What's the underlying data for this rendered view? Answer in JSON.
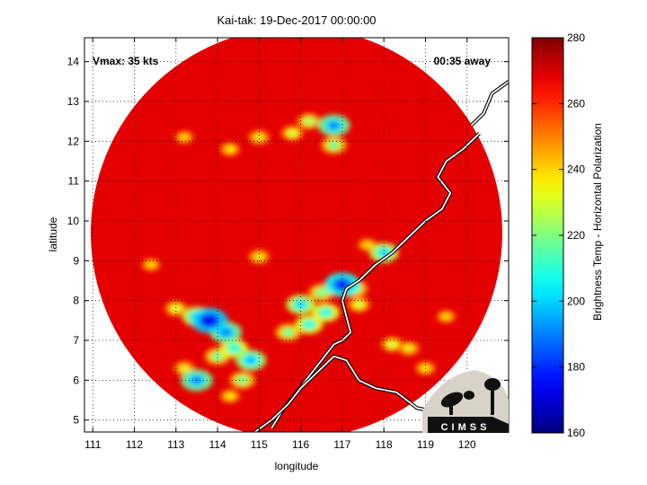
{
  "chart_data": {
    "type": "heatmap",
    "title": "Kai-tak: 19-Dec-2017 00:00:00",
    "xlabel": "longitude",
    "ylabel": "latitude",
    "xlim": [
      110.8,
      121.0
    ],
    "ylim": [
      4.7,
      14.6
    ],
    "xticks": [
      111,
      112,
      113,
      114,
      115,
      116,
      117,
      118,
      119,
      120
    ],
    "yticks": [
      5,
      6,
      7,
      8,
      9,
      10,
      11,
      12,
      13,
      14
    ],
    "grid": true,
    "annotations": {
      "left": "Vmax: 35 kts",
      "right": "00:35 away"
    },
    "swath": {
      "center": [
        115.9,
        9.7
      ],
      "radius_deg": 4.95,
      "background_value": 268
    },
    "colorbar": {
      "label": "Brightness Temp - Horizontal Polarization",
      "min": 160,
      "max": 280,
      "ticks": [
        160,
        180,
        200,
        220,
        240,
        260,
        280
      ],
      "colormap": "jet"
    },
    "features": [
      {
        "lon": 113.8,
        "lat": 7.5,
        "value": 172
      },
      {
        "lon": 113.5,
        "lat": 7.6,
        "value": 200
      },
      {
        "lon": 113.0,
        "lat": 7.8,
        "value": 225
      },
      {
        "lon": 114.2,
        "lat": 7.2,
        "value": 190
      },
      {
        "lon": 114.4,
        "lat": 6.8,
        "value": 205
      },
      {
        "lon": 114.0,
        "lat": 6.6,
        "value": 215
      },
      {
        "lon": 114.8,
        "lat": 6.5,
        "value": 195
      },
      {
        "lon": 114.6,
        "lat": 6.0,
        "value": 215
      },
      {
        "lon": 113.5,
        "lat": 6.0,
        "value": 190
      },
      {
        "lon": 113.2,
        "lat": 6.3,
        "value": 230
      },
      {
        "lon": 114.3,
        "lat": 5.6,
        "value": 235
      },
      {
        "lon": 116.2,
        "lat": 7.4,
        "value": 205
      },
      {
        "lon": 116.6,
        "lat": 7.7,
        "value": 205
      },
      {
        "lon": 116.0,
        "lat": 7.9,
        "value": 200
      },
      {
        "lon": 116.5,
        "lat": 8.2,
        "value": 215
      },
      {
        "lon": 115.7,
        "lat": 7.2,
        "value": 215
      },
      {
        "lon": 117.0,
        "lat": 8.4,
        "value": 178
      },
      {
        "lon": 117.3,
        "lat": 8.3,
        "value": 215
      },
      {
        "lon": 117.4,
        "lat": 7.9,
        "value": 225
      },
      {
        "lon": 118.0,
        "lat": 9.2,
        "value": 200
      },
      {
        "lon": 117.6,
        "lat": 9.4,
        "value": 240
      },
      {
        "lon": 118.2,
        "lat": 6.9,
        "value": 225
      },
      {
        "lon": 118.6,
        "lat": 6.8,
        "value": 230
      },
      {
        "lon": 119.0,
        "lat": 6.3,
        "value": 235
      },
      {
        "lon": 116.8,
        "lat": 12.4,
        "value": 190
      },
      {
        "lon": 116.8,
        "lat": 11.9,
        "value": 215
      },
      {
        "lon": 116.2,
        "lat": 12.5,
        "value": 220
      },
      {
        "lon": 115.8,
        "lat": 12.2,
        "value": 225
      },
      {
        "lon": 115.0,
        "lat": 12.1,
        "value": 230
      },
      {
        "lon": 114.3,
        "lat": 11.8,
        "value": 235
      },
      {
        "lon": 113.2,
        "lat": 12.1,
        "value": 240
      },
      {
        "lon": 115.0,
        "lat": 9.1,
        "value": 230
      },
      {
        "lon": 112.4,
        "lat": 8.9,
        "value": 240
      },
      {
        "lon": 119.5,
        "lat": 7.6,
        "value": 240
      }
    ],
    "coastlines": [
      {
        "name": "Palawan",
        "points": [
          [
            115.3,
            4.8
          ],
          [
            115.6,
            5.3
          ],
          [
            115.9,
            5.7
          ],
          [
            116.2,
            6.1
          ],
          [
            116.5,
            6.5
          ],
          [
            116.8,
            6.9
          ],
          [
            117.0,
            7.0
          ],
          [
            117.2,
            7.2
          ],
          [
            117.1,
            7.6
          ],
          [
            117.0,
            8.0
          ],
          [
            117.1,
            8.3
          ],
          [
            117.4,
            8.5
          ],
          [
            117.8,
            8.9
          ],
          [
            118.2,
            9.2
          ],
          [
            118.6,
            9.6
          ],
          [
            119.0,
            10.0
          ],
          [
            119.4,
            10.3
          ],
          [
            119.6,
            10.7
          ],
          [
            119.3,
            11.1
          ],
          [
            119.5,
            11.5
          ],
          [
            119.9,
            11.8
          ],
          [
            120.3,
            12.2
          ]
        ]
      },
      {
        "name": "Borneo north coast",
        "points": [
          [
            114.9,
            4.7
          ],
          [
            115.3,
            5.0
          ],
          [
            115.7,
            5.4
          ],
          [
            116.0,
            5.8
          ],
          [
            116.4,
            6.2
          ],
          [
            116.8,
            6.6
          ],
          [
            117.1,
            6.5
          ],
          [
            117.4,
            6.0
          ],
          [
            117.8,
            5.8
          ],
          [
            118.3,
            5.7
          ],
          [
            118.8,
            5.3
          ],
          [
            119.3,
            5.2
          ]
        ]
      },
      {
        "name": "Mindoro",
        "points": [
          [
            120.1,
            12.4
          ],
          [
            120.4,
            12.7
          ],
          [
            120.6,
            13.2
          ],
          [
            121.0,
            13.5
          ]
        ]
      }
    ],
    "logo": "CIMSS"
  }
}
